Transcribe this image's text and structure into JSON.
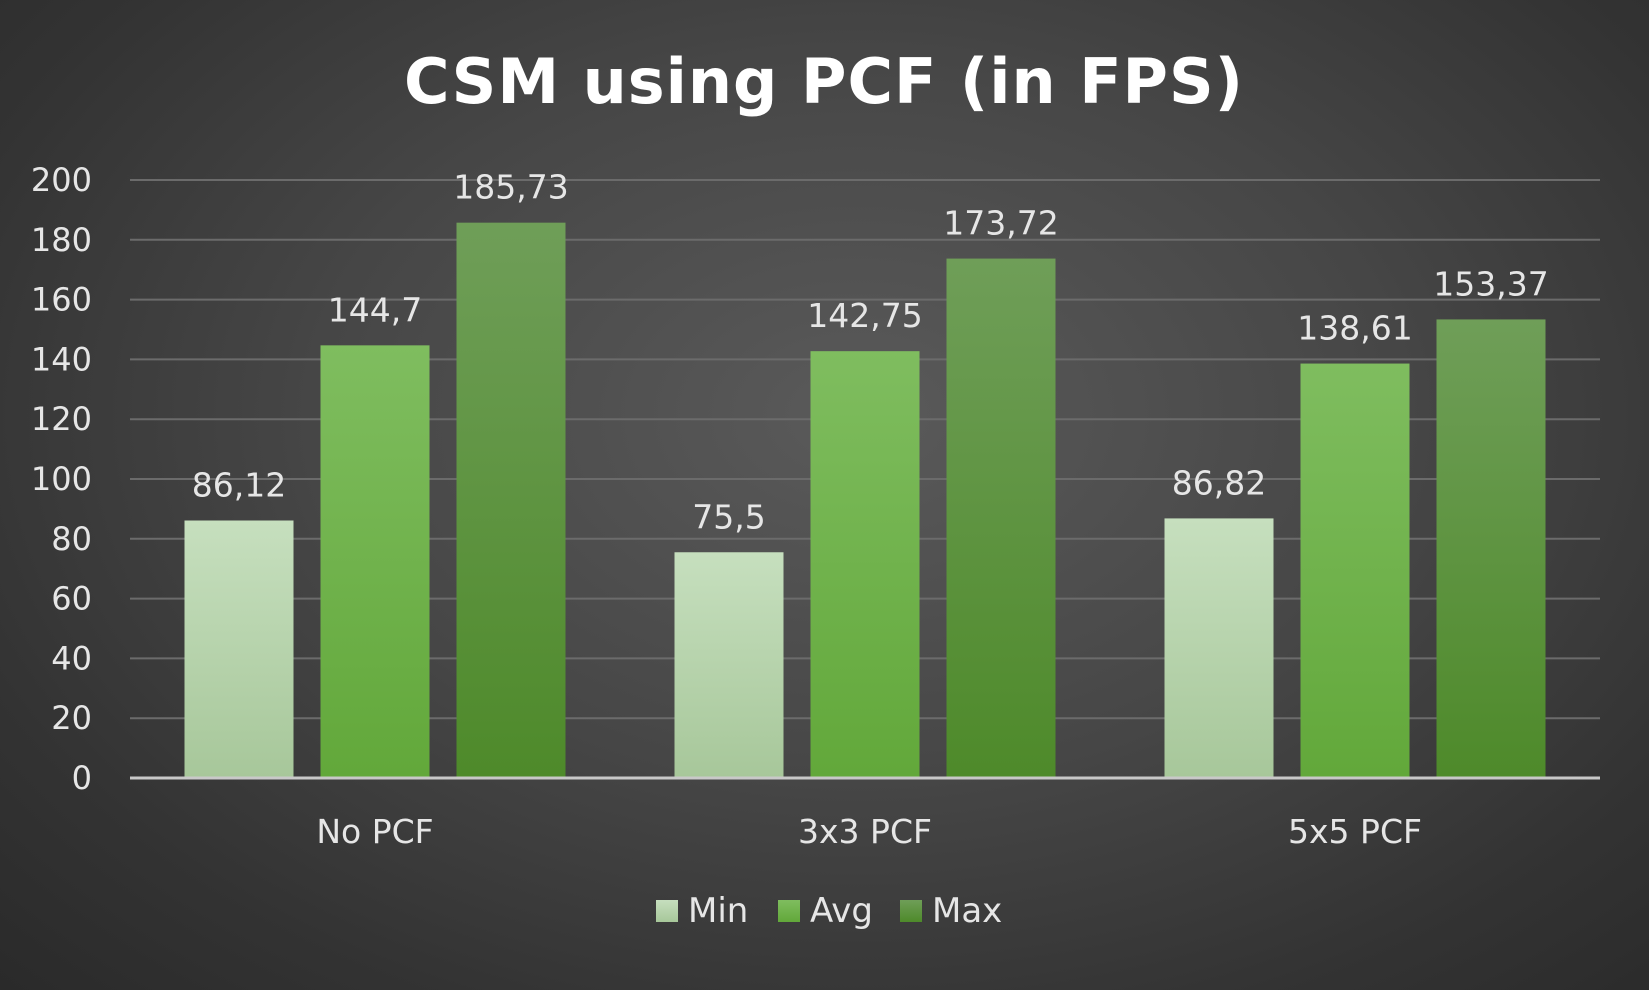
{
  "chart_data": {
    "type": "bar",
    "title": "CSM using PCF (in FPS)",
    "xlabel": "",
    "ylabel": "",
    "categories": [
      "No PCF",
      "3x3 PCF",
      "5x5 PCF"
    ],
    "series": [
      {
        "name": "Min",
        "values": [
          86.12,
          75.5,
          86.82
        ],
        "labels": [
          "86,12",
          "75,5",
          "86,82"
        ],
        "color_top": "#c6dfbe",
        "color_bottom": "#a7c79a"
      },
      {
        "name": "Avg",
        "values": [
          144.7,
          142.75,
          138.61
        ],
        "labels": [
          "144,7",
          "142,75",
          "138,61"
        ],
        "color_top": "#7fbd5f",
        "color_bottom": "#62a83a"
      },
      {
        "name": "Max",
        "values": [
          185.73,
          173.72,
          153.37
        ],
        "labels": [
          "185,73",
          "173,72",
          "153,37"
        ],
        "color_top": "#6f9e58",
        "color_bottom": "#4e8a2a"
      }
    ],
    "ylim": [
      0,
      200
    ],
    "yticks": [
      0,
      20,
      40,
      60,
      80,
      100,
      120,
      140,
      160,
      180,
      200
    ],
    "grid": true,
    "legend_position": "bottom-center"
  }
}
